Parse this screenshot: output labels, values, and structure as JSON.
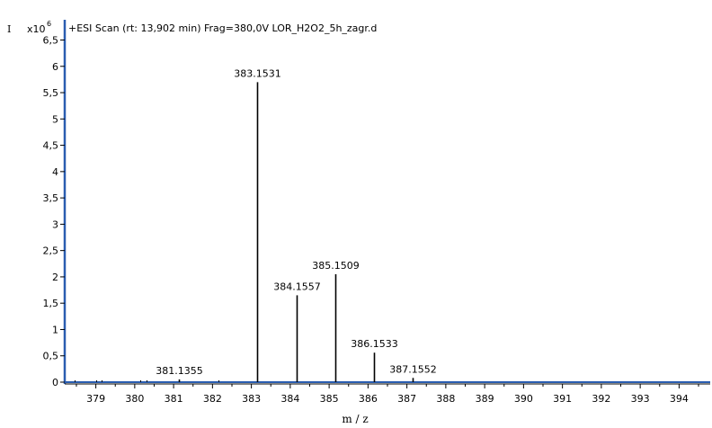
{
  "chart_data": {
    "type": "bar",
    "title": "+ESI Scan (rt: 13,902 min) Frag=380,0V LOR_H2O2_5h_zagr.d",
    "xlabel": "m / z",
    "ylabel": "I",
    "y_scale_prefix": "x10",
    "y_scale_exponent": "6",
    "xlim": [
      378.2,
      394.8
    ],
    "ylim": [
      0,
      6.85
    ],
    "x_ticks": [
      379,
      380,
      381,
      382,
      383,
      384,
      385,
      386,
      387,
      388,
      389,
      390,
      391,
      392,
      393,
      394
    ],
    "x_tick_labels": [
      "379",
      "380",
      "381",
      "382",
      "383",
      "384",
      "385",
      "386",
      "387",
      "388",
      "389",
      "390",
      "391",
      "392",
      "393",
      "394"
    ],
    "y_ticks": [
      0,
      0.5,
      1,
      1.5,
      2,
      2.5,
      3,
      3.5,
      4,
      4.5,
      5,
      5.5,
      6,
      6.5
    ],
    "y_tick_labels": [
      "0",
      "0,5",
      "1",
      "1,5",
      "2",
      "2,5",
      "3",
      "3,5",
      "4",
      "4,5",
      "5",
      "5,5",
      "6",
      "6,5"
    ],
    "peaks": [
      {
        "mz": 381.1355,
        "intensity": 0.04,
        "label": "381.1355"
      },
      {
        "mz": 383.1531,
        "intensity": 5.7,
        "label": "383.1531"
      },
      {
        "mz": 384.1557,
        "intensity": 1.65,
        "label": "384.1557"
      },
      {
        "mz": 385.1509,
        "intensity": 2.05,
        "label": "385.1509"
      },
      {
        "mz": 386.1533,
        "intensity": 0.56,
        "label": "386.1533"
      },
      {
        "mz": 387.1552,
        "intensity": 0.08,
        "label": "387.1552"
      }
    ],
    "minor_peaks": [
      {
        "mz": 378.45,
        "intensity": 0.02
      },
      {
        "mz": 379.0,
        "intensity": 0.02
      },
      {
        "mz": 379.15,
        "intensity": 0.02
      },
      {
        "mz": 380.15,
        "intensity": 0.02
      },
      {
        "mz": 380.3,
        "intensity": 0.02
      },
      {
        "mz": 382.15,
        "intensity": 0.02
      }
    ],
    "colors": {
      "axis_accent": "#2a5db0",
      "peak": "#000000",
      "background": "#ffffff"
    },
    "grid": false
  }
}
